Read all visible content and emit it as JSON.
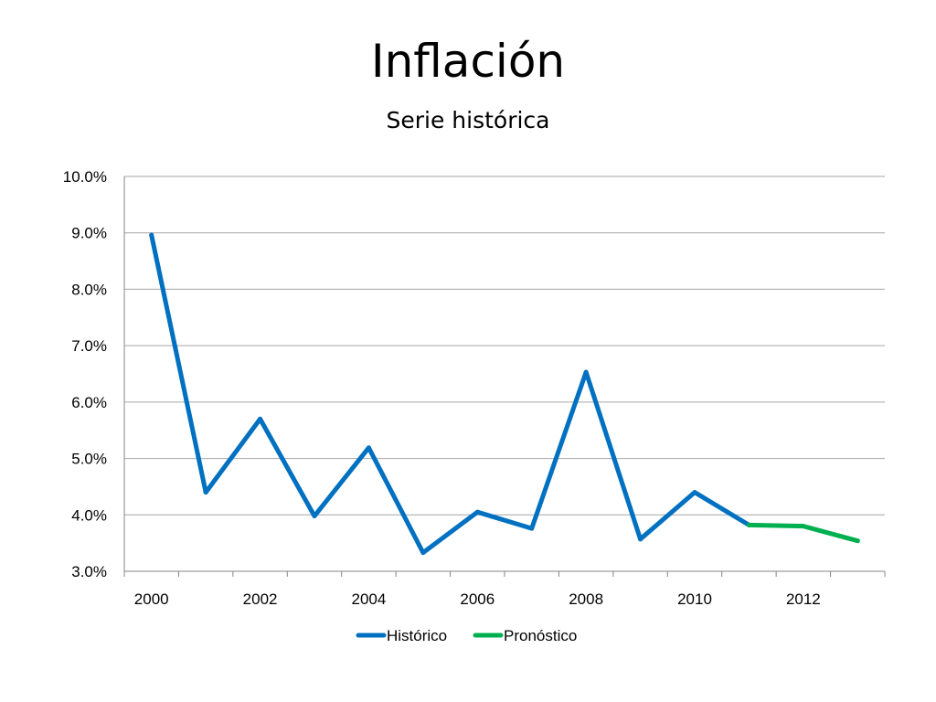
{
  "slide": {
    "title": "Inflación",
    "subtitle": "Serie histórica"
  },
  "colors": {
    "historico": "#0070C0",
    "pronostico": "#00B050",
    "grid": "#A6A6A6",
    "axis": "#868686"
  },
  "chart_data": {
    "type": "line",
    "title": "",
    "xlabel": "",
    "ylabel": "",
    "x": [
      2000,
      2001,
      2002,
      2003,
      2004,
      2005,
      2006,
      2007,
      2008,
      2009,
      2010,
      2011,
      2012,
      2013
    ],
    "x_tick_labels": [
      "2000",
      "2002",
      "2004",
      "2006",
      "2008",
      "2010",
      "2012"
    ],
    "y_tick_labels": [
      "3.0%",
      "4.0%",
      "5.0%",
      "6.0%",
      "7.0%",
      "8.0%",
      "9.0%",
      "10.0%"
    ],
    "ylim": [
      3.0,
      10.0
    ],
    "grid": true,
    "legend_position": "bottom",
    "series": [
      {
        "name": "Histórico",
        "color": "#0070C0",
        "x": [
          2000,
          2001,
          2002,
          2003,
          2004,
          2005,
          2006,
          2007,
          2008,
          2009,
          2010,
          2011
        ],
        "values": [
          8.96,
          4.4,
          5.7,
          3.98,
          5.19,
          3.33,
          4.05,
          3.76,
          6.53,
          3.57,
          4.4,
          3.82
        ]
      },
      {
        "name": "Pronóstico",
        "color": "#00B050",
        "x": [
          2011,
          2012,
          2013
        ],
        "values": [
          3.82,
          3.8,
          3.54
        ]
      }
    ]
  }
}
